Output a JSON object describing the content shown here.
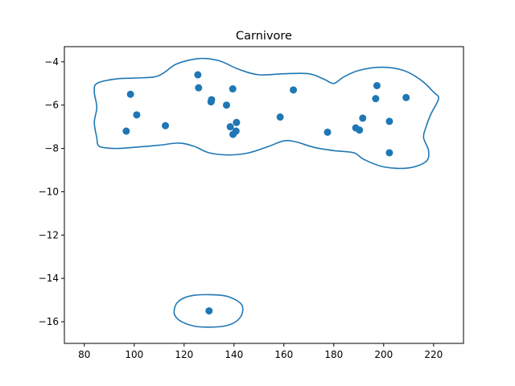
{
  "chart_data": {
    "type": "scatter",
    "title": "Carnivore",
    "xlabel": "",
    "ylabel": "",
    "xlim": [
      72,
      232
    ],
    "ylim": [
      -17,
      -3.3
    ],
    "x_ticks": [
      80,
      100,
      120,
      140,
      160,
      180,
      200,
      220
    ],
    "y_ticks": [
      -4,
      -6,
      -8,
      -10,
      -12,
      -14,
      -16
    ],
    "grid": false,
    "point_color": "#1f77b4",
    "contour_color": "#1f77b4",
    "points": [
      {
        "x": 98.5,
        "y": -5.5
      },
      {
        "x": 101.0,
        "y": -6.45
      },
      {
        "x": 96.8,
        "y": -7.2
      },
      {
        "x": 112.5,
        "y": -6.95
      },
      {
        "x": 125.5,
        "y": -4.6
      },
      {
        "x": 125.8,
        "y": -5.2
      },
      {
        "x": 131.0,
        "y": -5.75
      },
      {
        "x": 130.8,
        "y": -5.85
      },
      {
        "x": 137.0,
        "y": -6.0
      },
      {
        "x": 139.5,
        "y": -5.25
      },
      {
        "x": 138.5,
        "y": -7.0
      },
      {
        "x": 141.0,
        "y": -6.8
      },
      {
        "x": 140.8,
        "y": -7.2
      },
      {
        "x": 139.6,
        "y": -7.35
      },
      {
        "x": 158.5,
        "y": -6.55
      },
      {
        "x": 163.8,
        "y": -5.3
      },
      {
        "x": 177.5,
        "y": -7.25
      },
      {
        "x": 188.8,
        "y": -7.05
      },
      {
        "x": 190.3,
        "y": -7.15
      },
      {
        "x": 191.6,
        "y": -6.6
      },
      {
        "x": 196.8,
        "y": -5.7
      },
      {
        "x": 197.3,
        "y": -5.1
      },
      {
        "x": 202.3,
        "y": -6.75
      },
      {
        "x": 202.3,
        "y": -8.2
      },
      {
        "x": 209.0,
        "y": -5.65
      },
      {
        "x": 130.0,
        "y": -15.5
      }
    ],
    "contours": [
      [
        [
          85,
          -7.5
        ],
        [
          84,
          -6.8
        ],
        [
          85,
          -6.1
        ],
        [
          84,
          -5.4
        ],
        [
          85,
          -5.0
        ],
        [
          92,
          -4.8
        ],
        [
          100,
          -4.75
        ],
        [
          108,
          -4.7
        ],
        [
          112,
          -4.5
        ],
        [
          117,
          -4.1
        ],
        [
          126,
          -3.85
        ],
        [
          134,
          -3.95
        ],
        [
          142,
          -4.35
        ],
        [
          150,
          -4.6
        ],
        [
          160,
          -4.55
        ],
        [
          170,
          -4.55
        ],
        [
          176,
          -4.8
        ],
        [
          180,
          -5.0
        ],
        [
          184,
          -4.7
        ],
        [
          190,
          -4.4
        ],
        [
          199,
          -4.25
        ],
        [
          208,
          -4.4
        ],
        [
          215,
          -4.85
        ],
        [
          220,
          -5.4
        ],
        [
          222,
          -5.7
        ],
        [
          219,
          -6.4
        ],
        [
          217,
          -7.0
        ],
        [
          216,
          -7.5
        ],
        [
          218,
          -8.1
        ],
        [
          217,
          -8.6
        ],
        [
          210,
          -8.9
        ],
        [
          200,
          -8.85
        ],
        [
          192,
          -8.5
        ],
        [
          188,
          -8.2
        ],
        [
          180,
          -8.1
        ],
        [
          172,
          -7.95
        ],
        [
          165,
          -7.7
        ],
        [
          160,
          -7.65
        ],
        [
          154,
          -7.9
        ],
        [
          146,
          -8.2
        ],
        [
          138,
          -8.3
        ],
        [
          130,
          -8.2
        ],
        [
          124,
          -7.9
        ],
        [
          118,
          -7.75
        ],
        [
          110,
          -7.85
        ],
        [
          100,
          -7.95
        ],
        [
          92,
          -8.0
        ],
        [
          86,
          -7.9
        ]
      ],
      [
        [
          116,
          -15.5
        ],
        [
          117,
          -15.15
        ],
        [
          120,
          -14.9
        ],
        [
          124,
          -14.78
        ],
        [
          130,
          -14.75
        ],
        [
          136,
          -14.8
        ],
        [
          140,
          -14.95
        ],
        [
          143,
          -15.2
        ],
        [
          143.5,
          -15.5
        ],
        [
          142.5,
          -15.8
        ],
        [
          140,
          -16.05
        ],
        [
          136,
          -16.2
        ],
        [
          130,
          -16.25
        ],
        [
          124,
          -16.2
        ],
        [
          119,
          -16.0
        ],
        [
          116.5,
          -15.75
        ]
      ]
    ]
  }
}
